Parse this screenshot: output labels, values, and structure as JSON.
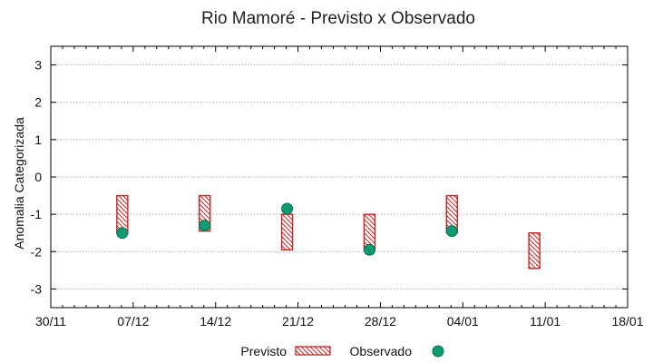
{
  "chart_data": {
    "type": "range-bar-scatter",
    "title": "Rio Mamoré - Previsto x Observado",
    "xlabel": "",
    "ylabel": "Anomalia Categorizada",
    "ylim": [
      -3.5,
      3.5
    ],
    "yticks": [
      -3,
      -2,
      -1,
      0,
      1,
      2,
      3
    ],
    "y_grid": true,
    "xticks": [
      "30/11",
      "07/12",
      "14/12",
      "21/12",
      "28/12",
      "04/01",
      "11/01",
      "18/01"
    ],
    "legend": {
      "placement": "bottom",
      "entries": [
        {
          "name": "Previsto",
          "kind": "hatched-box"
        },
        {
          "name": "Observado",
          "kind": "dot"
        }
      ]
    },
    "series": [
      {
        "name": "Previsto",
        "ranges": [
          {
            "date": "07/12",
            "low": -1.5,
            "high": -0.5
          },
          {
            "date": "14/12",
            "low": -1.45,
            "high": -0.5
          },
          {
            "date": "21/12",
            "low": -1.95,
            "high": -1.0
          },
          {
            "date": "28/12",
            "low": -1.95,
            "high": -1.0
          },
          {
            "date": "04/01",
            "low": -1.5,
            "high": -0.5
          },
          {
            "date": "11/01",
            "low": -2.45,
            "high": -1.5
          }
        ]
      },
      {
        "name": "Observado",
        "points": [
          {
            "date": "07/12",
            "value": -1.5
          },
          {
            "date": "14/12",
            "value": -1.3
          },
          {
            "date": "21/12",
            "value": -0.85
          },
          {
            "date": "28/12",
            "value": -1.95
          },
          {
            "date": "04/01",
            "value": -1.45
          }
        ]
      }
    ],
    "colors": {
      "box_stroke": "#cc2222",
      "hatch": "#cc2222",
      "dot": "#0f9a72",
      "dot_stroke": "#0a6e50",
      "grid": "#aaaaaa",
      "axis": "#000000"
    }
  }
}
